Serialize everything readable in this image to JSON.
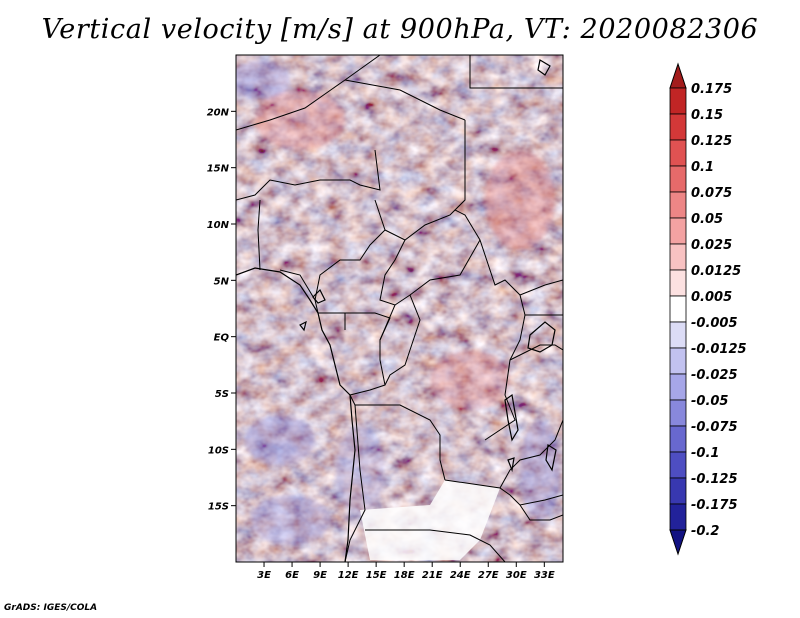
{
  "title": "Vertical velocity [m/s] at 900hPa, VT: 2020082306",
  "credit": "GrADS: IGES/COLA",
  "chart_data": {
    "type": "heatmap",
    "title": "Vertical velocity [m/s] at 900hPa, VT: 2020082306",
    "variable": "Vertical velocity",
    "units": "m/s",
    "level": "900hPa",
    "valid_time": "2020082306",
    "lon_range": [
      0,
      35
    ],
    "lat_range": [
      -20,
      25
    ],
    "x_ticks": [
      {
        "value": 3,
        "label": "3E"
      },
      {
        "value": 6,
        "label": "6E"
      },
      {
        "value": 9,
        "label": "9E"
      },
      {
        "value": 12,
        "label": "12E"
      },
      {
        "value": 15,
        "label": "15E"
      },
      {
        "value": 18,
        "label": "18E"
      },
      {
        "value": 21,
        "label": "21E"
      },
      {
        "value": 24,
        "label": "24E"
      },
      {
        "value": 27,
        "label": "27E"
      },
      {
        "value": 30,
        "label": "30E"
      },
      {
        "value": 33,
        "label": "33E"
      }
    ],
    "y_ticks": [
      {
        "value": 20,
        "label": "20N"
      },
      {
        "value": 15,
        "label": "15N"
      },
      {
        "value": 10,
        "label": "10N"
      },
      {
        "value": 5,
        "label": "5N"
      },
      {
        "value": 0,
        "label": "EQ"
      },
      {
        "value": -5,
        "label": "5S"
      },
      {
        "value": -10,
        "label": "10S"
      },
      {
        "value": -15,
        "label": "15S"
      }
    ],
    "colorbar": {
      "levels": [
        "0.175",
        "0.15",
        "0.125",
        "0.1",
        "0.075",
        "0.05",
        "0.025",
        "0.0125",
        "0.005",
        "-0.005",
        "-0.0125",
        "-0.025",
        "-0.05",
        "-0.075",
        "-0.1",
        "-0.125",
        "-0.175",
        "-0.2"
      ],
      "colors": [
        "#a31c1c",
        "#c12525",
        "#d33838",
        "#e05252",
        "#e66a6a",
        "#ed8686",
        "#f3a2a2",
        "#f8c2c2",
        "#fce1e1",
        "#ffffff",
        "#dcdcf6",
        "#c2c2f0",
        "#a6a6e8",
        "#8888dc",
        "#6868cf",
        "#4e4ec2",
        "#3838b0",
        "#22229a",
        "#121282"
      ],
      "over_color": "#a31c1c",
      "under_color": "#121282"
    }
  }
}
